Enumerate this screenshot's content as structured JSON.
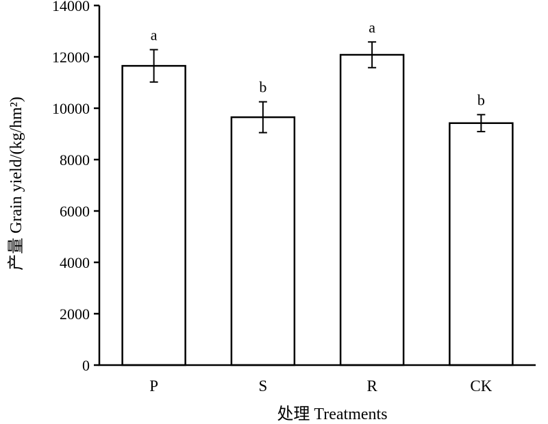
{
  "chart_data": {
    "type": "bar",
    "title": "",
    "xlabel": "处理 Treatments",
    "ylabel": "产量 Grain yield/(kg/hm²)",
    "ylim": [
      0,
      14000
    ],
    "yticks": [
      0,
      2000,
      4000,
      6000,
      8000,
      10000,
      12000,
      14000
    ],
    "categories": [
      "P",
      "S",
      "R",
      "CK"
    ],
    "values": [
      11650,
      9650,
      12080,
      9420
    ],
    "errors": [
      630,
      600,
      500,
      330
    ],
    "significance": [
      "a",
      "b",
      "a",
      "b"
    ],
    "grid": false,
    "legend": "none",
    "colors": {
      "bar_fill": "#ffffff",
      "bar_stroke": "#000000"
    }
  }
}
